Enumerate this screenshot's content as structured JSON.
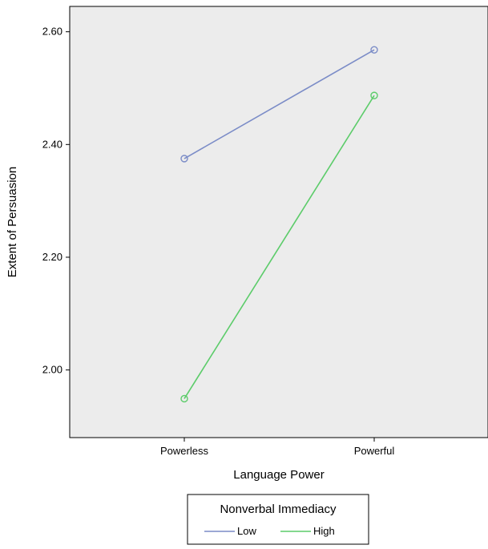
{
  "chart_data": {
    "type": "line",
    "title": "",
    "xlabel": "Language Power",
    "ylabel": "Extent of Persuasion",
    "categories": [
      "Powerless",
      "Powerful"
    ],
    "ylim": [
      1.88,
      2.645
    ],
    "yticks": [
      "2.00",
      "2.20",
      "2.40",
      "2.60"
    ],
    "grid": false,
    "background": "#ececec",
    "legend": {
      "title": "Nonverbal Immediacy",
      "placement": "bottom-center"
    },
    "series": [
      {
        "name": "Low",
        "color": "#7b8cc7",
        "values": [
          2.375,
          2.568
        ]
      },
      {
        "name": "High",
        "color": "#5ccc6a",
        "values": [
          1.949,
          2.487
        ]
      }
    ]
  }
}
